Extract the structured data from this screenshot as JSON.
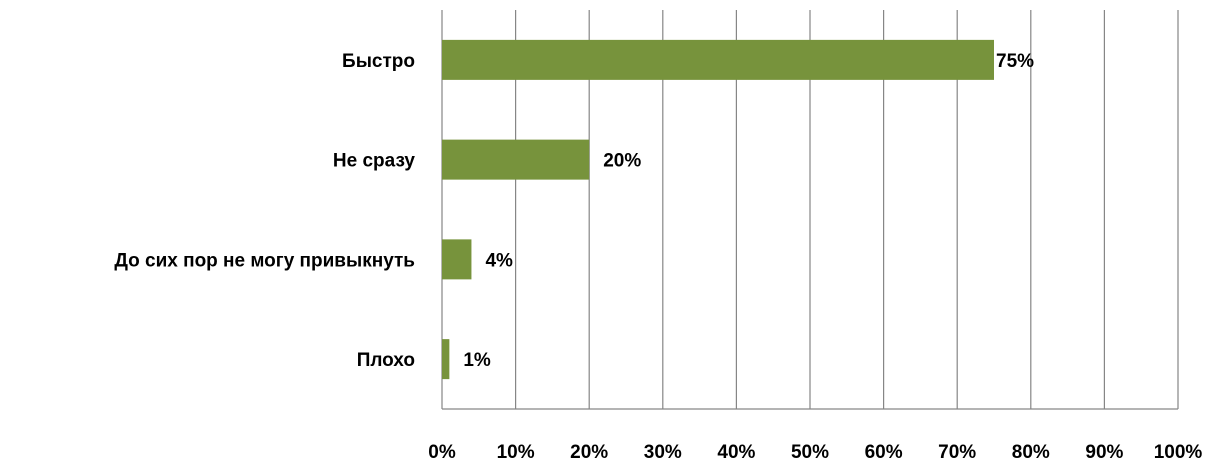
{
  "chart_data": {
    "type": "bar",
    "orientation": "horizontal",
    "categories": [
      "Быстро",
      "Не сразу",
      "До сих пор не могу привыкнуть",
      "Плохо"
    ],
    "values": [
      75,
      20,
      4,
      1
    ],
    "value_labels": [
      "75%",
      "20%",
      "4%",
      "1%"
    ],
    "xlim": [
      0,
      100
    ],
    "x_ticks": [
      "0%",
      "10%",
      "20%",
      "30%",
      "40%",
      "50%",
      "60%",
      "70%",
      "80%",
      "90%",
      "100%"
    ],
    "grid": true,
    "legend": "none",
    "bar_color": "#77933c",
    "grid_color": "#868686"
  }
}
